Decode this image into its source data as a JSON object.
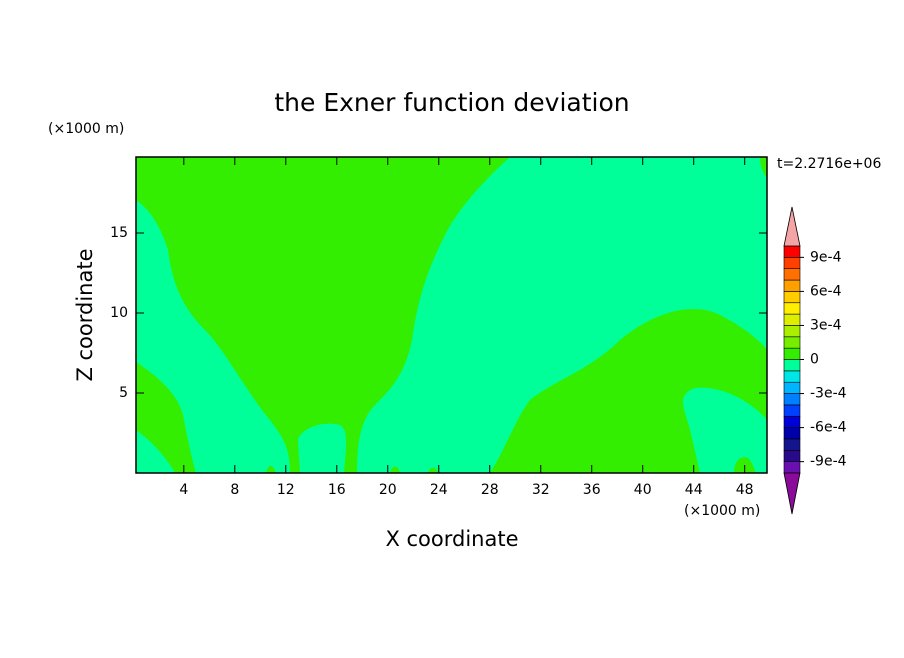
{
  "chart_data": {
    "type": "contour",
    "title": "the Exner function deviation",
    "x_label": "X coordinate",
    "y_label": "Z coordinate",
    "x_unit_label": "(×1000 m)",
    "y_unit_label": "(×1000 m)",
    "annotation": "t=2.2716e+06",
    "xlim": [
      0.25,
      49.75
    ],
    "ylim": [
      0,
      19.75
    ],
    "xticks": [
      4,
      8,
      12,
      16,
      20,
      24,
      28,
      32,
      36,
      40,
      44,
      48
    ],
    "yticks": [
      5,
      10,
      15
    ],
    "colorbar": {
      "levels": [
        -0.001,
        -0.0009,
        -0.0008,
        -0.0007,
        -0.0006,
        -0.0005,
        -0.0004,
        -0.0003,
        -0.0002,
        -0.0001,
        0,
        0.0001,
        0.0002,
        0.0003,
        0.0004,
        0.0005,
        0.0006,
        0.0007,
        0.0008,
        0.0009,
        0.001
      ],
      "colors": [
        "#6a10b0",
        "#2a0a8a",
        "#14148c",
        "#0000a8",
        "#0000d8",
        "#0040ff",
        "#0080ff",
        "#00b4ff",
        "#00e6e6",
        "#00ff99",
        "#33ee00",
        "#77ee00",
        "#aaee00",
        "#ddee00",
        "#ffee00",
        "#ffcc00",
        "#ffa000",
        "#ff7000",
        "#ff4000",
        "#ff0000"
      ],
      "over_color": "#f4a4a4",
      "under_color": "#8a0a9a",
      "ticks": [
        {
          "value": -0.0009,
          "label": "-9e-4"
        },
        {
          "value": -0.0006,
          "label": "-6e-4"
        },
        {
          "value": -0.0003,
          "label": "-3e-4"
        },
        0,
        {
          "value": 0.0003,
          "label": "3e-4"
        },
        {
          "value": 0.0006,
          "label": "6e-4"
        },
        {
          "value": 0.0009,
          "label": "9e-4"
        }
      ]
    }
  }
}
